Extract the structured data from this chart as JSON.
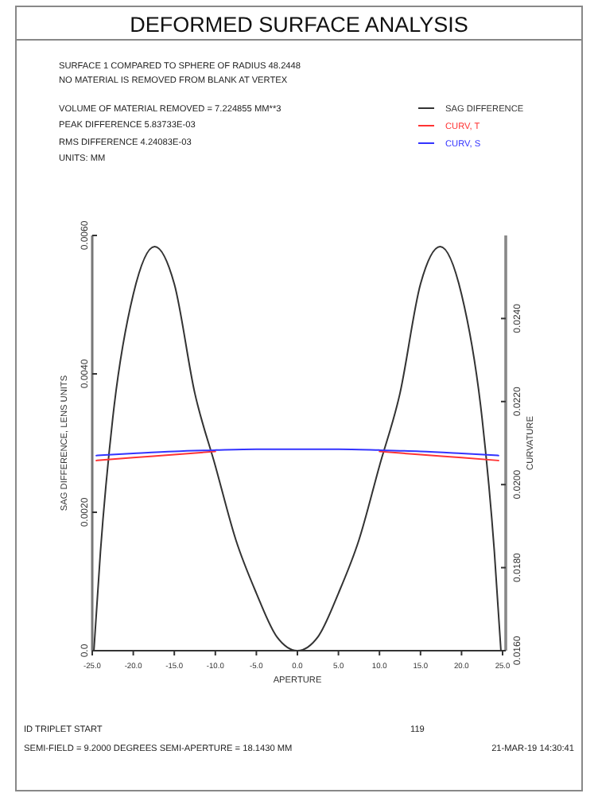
{
  "chart_data": {
    "type": "line",
    "title": "DEFORMED SURFACE ANALYSIS",
    "xlabel": "APERTURE",
    "ylabel": "SAG DIFFERENCE, LENS UNITS",
    "y2label": "CURVATURE",
    "annotations": [
      "SURFACE   1 COMPARED TO SPHERE OF RADIUS    48.2448",
      "NO MATERIAL IS REMOVED FROM BLANK AT VERTEX",
      "VOLUME OF MATERIAL REMOVED =    7.224855 MM**3",
      "PEAK DIFFERENCE  5.83733E-03",
      "RMS DIFFERENCE   4.24083E-03",
      "UNITS: MM",
      "ID TRIPLET START",
      "119",
      "SEMI-FIELD =    9.2000 DEGREES   SEMI-APERTURE =  18.1430 MM",
      "21-MAR-19  14:30:41"
    ],
    "xlim": [
      -25,
      25
    ],
    "xticks": [
      {
        "value": -25,
        "label": "-25.0"
      },
      {
        "value": -20,
        "label": "-20.0"
      },
      {
        "value": -15,
        "label": "-15.0"
      },
      {
        "value": -10,
        "label": "-10.0"
      },
      {
        "value": -5,
        "label": "-5.0"
      },
      {
        "value": 0,
        "label": "0.0"
      },
      {
        "value": 5,
        "label": "5.0"
      },
      {
        "value": 10,
        "label": "10.0"
      },
      {
        "value": 15,
        "label": "15.0"
      },
      {
        "value": 20,
        "label": "20.0"
      },
      {
        "value": 25,
        "label": "25.0"
      }
    ],
    "ylim": [
      0,
      0.006
    ],
    "yticks": [
      {
        "value": 0,
        "label": "0.0"
      },
      {
        "value": 0.002,
        "label": "0.0020"
      },
      {
        "value": 0.004,
        "label": "0.0040"
      },
      {
        "value": 0.006,
        "label": "0.0060"
      }
    ],
    "y2lim": [
      0.016,
      0.026
    ],
    "y2ticks": [
      {
        "value": 0.016,
        "label": "0.0160"
      },
      {
        "value": 0.018,
        "label": "0.0180"
      },
      {
        "value": 0.02,
        "label": "0.0200"
      },
      {
        "value": 0.022,
        "label": "0.0220"
      },
      {
        "value": 0.024,
        "label": "0.0240"
      }
    ],
    "legend": "top right",
    "series": [
      {
        "name": "SAG DIFFERENCE",
        "color": "#333333",
        "x": [
          -24.8,
          -24,
          -22.5,
          -20,
          -17.4,
          -15,
          -12.5,
          -10,
          -7.5,
          -5,
          -2.5,
          0,
          2.5,
          5,
          7.5,
          10,
          12.5,
          15,
          17.4,
          20,
          22.5,
          24,
          24.8
        ],
        "values": [
          0,
          0.00143,
          0.00336,
          0.00515,
          0.00584,
          0.0053,
          0.00372,
          0.00267,
          0.0016,
          0.00083,
          0.0002,
          0,
          0.0002,
          0.00083,
          0.0016,
          0.00267,
          0.00372,
          0.0053,
          0.00584,
          0.00515,
          0.00336,
          0.00143,
          0
        ]
      },
      {
        "name": "CURV, T",
        "color": "#ff3333",
        "axis": "y2",
        "x": [
          -24.5,
          -20,
          -15,
          -10,
          -5,
          0,
          5,
          10,
          15,
          20,
          24.5
        ],
        "values": [
          0.02058,
          0.02065,
          0.02072,
          0.0208,
          null,
          null,
          null,
          0.0208,
          0.02072,
          0.02065,
          0.02058
        ]
      },
      {
        "name": "CURV, S",
        "color": "#3333ff",
        "axis": "y2",
        "x": [
          -24.5,
          -20,
          -15,
          -10,
          -5,
          0,
          5,
          10,
          15,
          20,
          24.5
        ],
        "values": [
          0.0207,
          0.02075,
          0.0208,
          0.02083,
          0.02085,
          0.02085,
          0.02085,
          0.02083,
          0.0208,
          0.02075,
          0.0207
        ]
      }
    ]
  }
}
